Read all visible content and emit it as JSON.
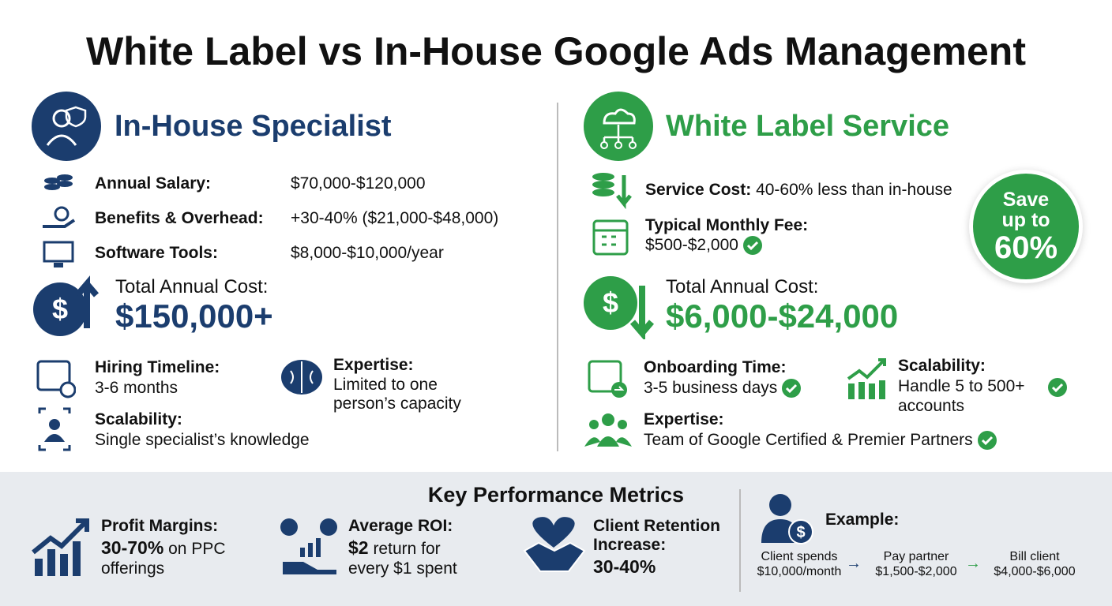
{
  "title": "White Label vs In-House Google Ads Management",
  "in_house": {
    "heading": "In-House Specialist",
    "costs": [
      {
        "label": "Annual Salary:",
        "value": "$70,000-$120,000"
      },
      {
        "label": "Benefits & Overhead:",
        "value": "+30-40% ($21,000-$48,000)"
      },
      {
        "label": "Software Tools:",
        "value": "$8,000-$10,000/year"
      }
    ],
    "total_label": "Total Annual Cost:",
    "total_value": "$150,000+",
    "features": [
      {
        "label": "Hiring Timeline:",
        "text": "3-6 months"
      },
      {
        "label": "Expertise:",
        "text": "Limited to one person’s capacity"
      },
      {
        "label": "Scalability:",
        "text": "Single specialist’s knowledge"
      }
    ]
  },
  "white_label": {
    "heading": "White Label Service",
    "costs": [
      {
        "label": "Service Cost:",
        "value": "40-60% less than in-house"
      },
      {
        "label": "Typical Monthly Fee:",
        "value": "$500-$2,000"
      }
    ],
    "badge": [
      "Save",
      "up to",
      "60%"
    ],
    "total_label": "Total Annual Cost:",
    "total_value": "$6,000-$24,000",
    "features": [
      {
        "label": "Onboarding Time:",
        "text": "3-5 business days"
      },
      {
        "label": "Scalability:",
        "text": "Handle 5 to 500+ accounts"
      },
      {
        "label": "Expertise:",
        "text": "Team of Google Certified & Premier Partners"
      }
    ]
  },
  "metrics": {
    "heading": "Key Performance Metrics",
    "items": [
      {
        "label": "Profit Margins:",
        "value": "30-70%",
        "text": "on PPC offerings"
      },
      {
        "label": "Average ROI:",
        "value": "$2",
        "text": "return for every $1 spent"
      },
      {
        "label": "Client Retention Increase:",
        "value": "30-40%"
      }
    ]
  },
  "example": {
    "heading": "Example:",
    "steps": [
      {
        "label": "Client spends",
        "value": "$10,000/month"
      },
      {
        "label": "Pay partner",
        "value": "$1,500-$2,000"
      },
      {
        "label": "Bill client",
        "value": "$4,000-$6,000"
      }
    ]
  }
}
